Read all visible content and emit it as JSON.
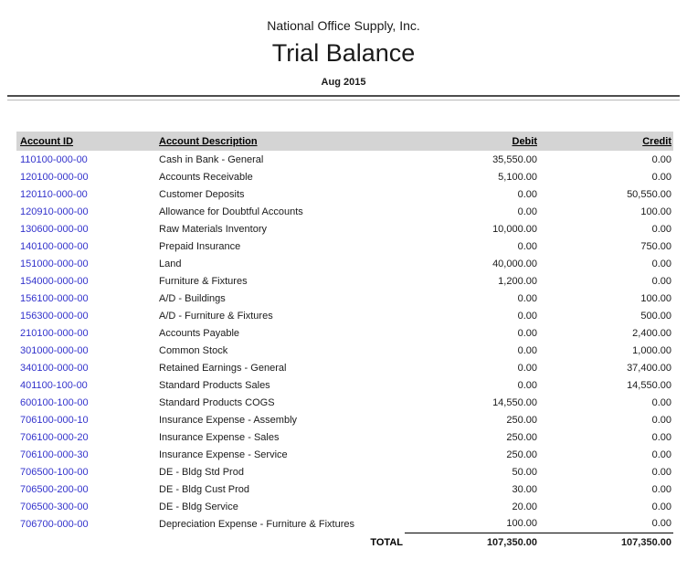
{
  "report": {
    "company": "National Office Supply, Inc.",
    "title": "Trial Balance",
    "period": "Aug 2015"
  },
  "colors": {
    "account_link_blue": "#3333cc",
    "header_band_gray": "#d4d4d4",
    "rule_dark": "#4d4d4d",
    "rule_light": "#b8b8b8"
  },
  "table": {
    "columns": {
      "account_id": "Account ID",
      "account_description": "Account Description",
      "debit": "Debit",
      "credit": "Credit"
    },
    "rows": [
      {
        "id": "110100-000-00",
        "description": "Cash in Bank - General",
        "debit": "35,550.00",
        "credit": "0.00"
      },
      {
        "id": "120100-000-00",
        "description": "Accounts Receivable",
        "debit": "5,100.00",
        "credit": "0.00"
      },
      {
        "id": "120110-000-00",
        "description": "Customer Deposits",
        "debit": "0.00",
        "credit": "50,550.00"
      },
      {
        "id": "120910-000-00",
        "description": "Allowance for Doubtful Accounts",
        "debit": "0.00",
        "credit": "100.00"
      },
      {
        "id": "130600-000-00",
        "description": "Raw Materials Inventory",
        "debit": "10,000.00",
        "credit": "0.00"
      },
      {
        "id": "140100-000-00",
        "description": "Prepaid Insurance",
        "debit": "0.00",
        "credit": "750.00"
      },
      {
        "id": "151000-000-00",
        "description": "Land",
        "debit": "40,000.00",
        "credit": "0.00"
      },
      {
        "id": "154000-000-00",
        "description": "Furniture & Fixtures",
        "debit": "1,200.00",
        "credit": "0.00"
      },
      {
        "id": "156100-000-00",
        "description": "A/D - Buildings",
        "debit": "0.00",
        "credit": "100.00"
      },
      {
        "id": "156300-000-00",
        "description": "A/D - Furniture & Fixtures",
        "debit": "0.00",
        "credit": "500.00"
      },
      {
        "id": "210100-000-00",
        "description": "Accounts Payable",
        "debit": "0.00",
        "credit": "2,400.00"
      },
      {
        "id": "301000-000-00",
        "description": "Common Stock",
        "debit": "0.00",
        "credit": "1,000.00"
      },
      {
        "id": "340100-000-00",
        "description": "Retained Earnings - General",
        "debit": "0.00",
        "credit": "37,400.00"
      },
      {
        "id": "401100-100-00",
        "description": "Standard Products Sales",
        "debit": "0.00",
        "credit": "14,550.00"
      },
      {
        "id": "600100-100-00",
        "description": "Standard Products COGS",
        "debit": "14,550.00",
        "credit": "0.00"
      },
      {
        "id": "706100-000-10",
        "description": "Insurance Expense - Assembly",
        "debit": "250.00",
        "credit": "0.00"
      },
      {
        "id": "706100-000-20",
        "description": "Insurance Expense - Sales",
        "debit": "250.00",
        "credit": "0.00"
      },
      {
        "id": "706100-000-30",
        "description": "Insurance Expense - Service",
        "debit": "250.00",
        "credit": "0.00"
      },
      {
        "id": "706500-100-00",
        "description": "DE - Bldg Std Prod",
        "debit": "50.00",
        "credit": "0.00"
      },
      {
        "id": "706500-200-00",
        "description": "DE - Bldg Cust Prod",
        "debit": "30.00",
        "credit": "0.00"
      },
      {
        "id": "706500-300-00",
        "description": "DE - Bldg Service",
        "debit": "20.00",
        "credit": "0.00"
      },
      {
        "id": "706700-000-00",
        "description": "Depreciation Expense - Furniture & Fixtures",
        "debit": "100.00",
        "credit": "0.00"
      }
    ],
    "total": {
      "label": "TOTAL",
      "debit": "107,350.00",
      "credit": "107,350.00"
    }
  }
}
